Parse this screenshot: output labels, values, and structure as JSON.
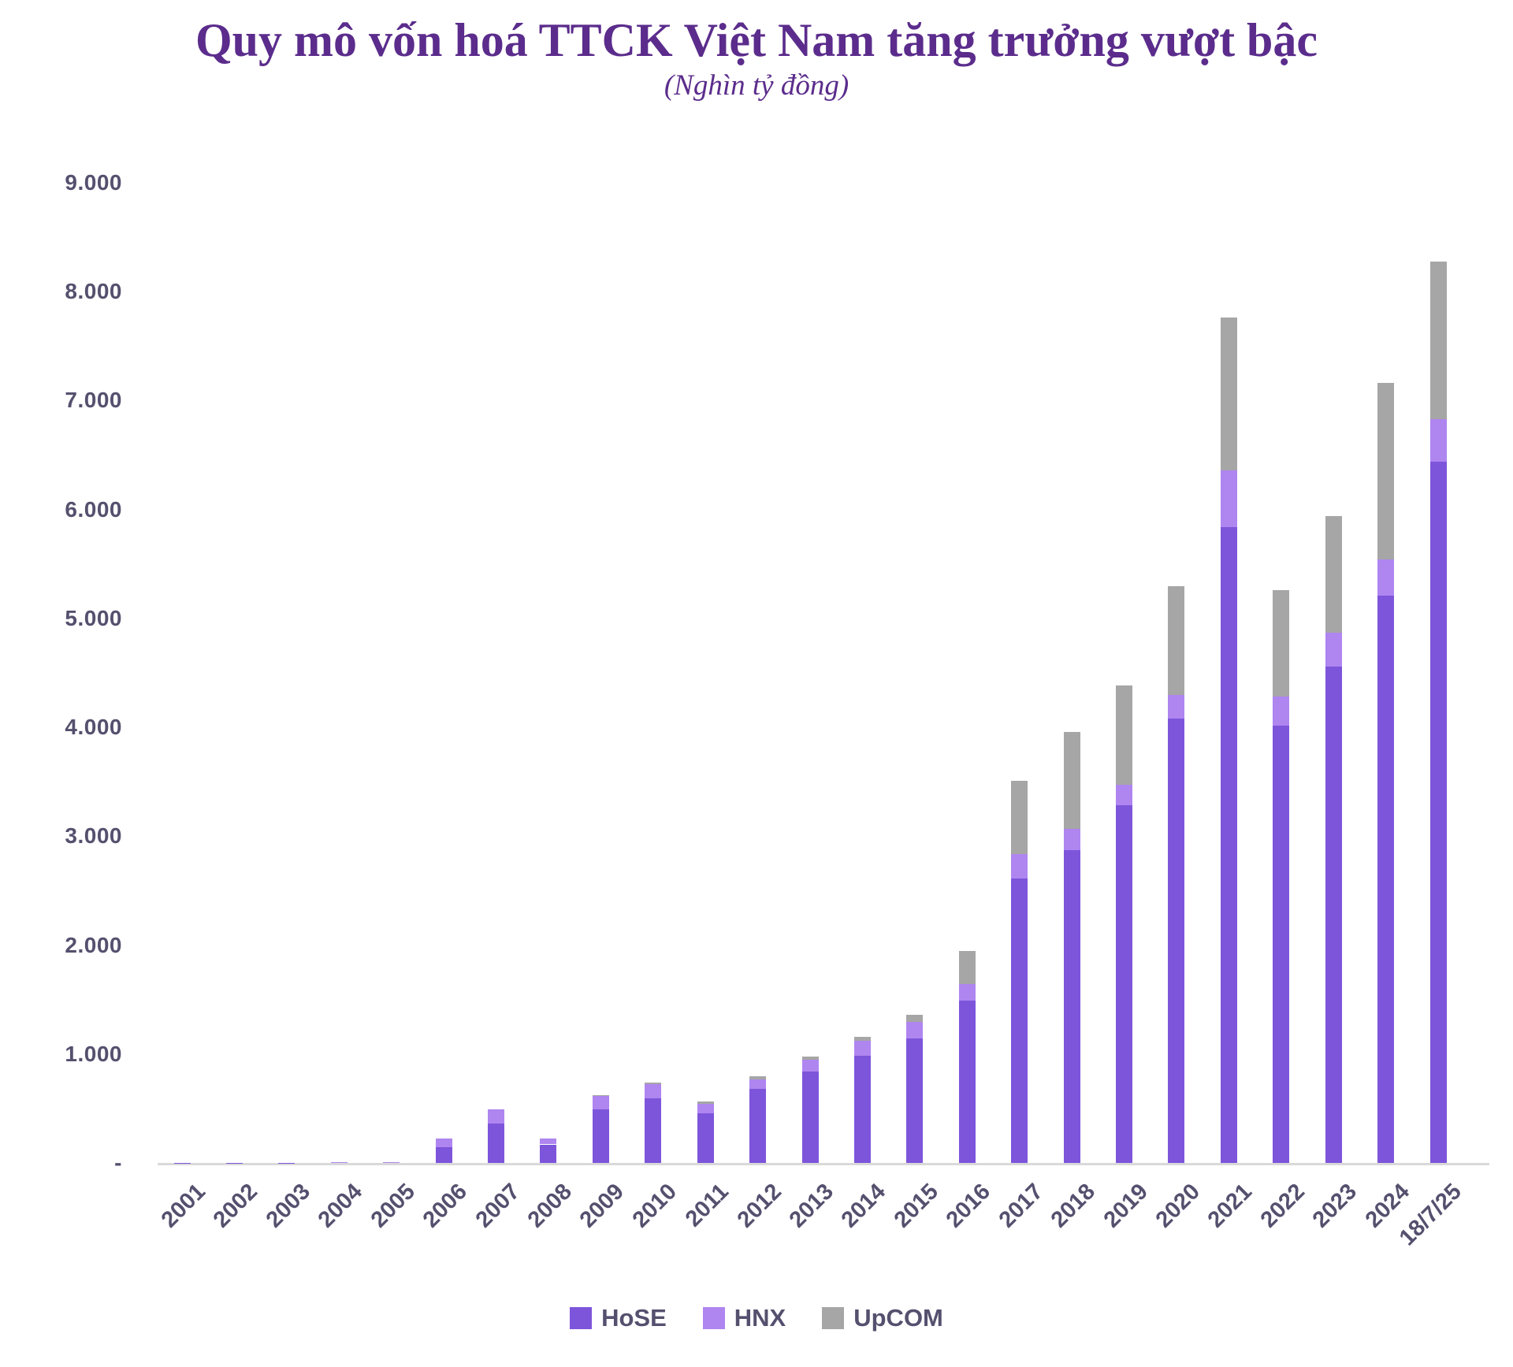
{
  "header": {
    "title": "Quy mô vốn hoá TTCK Việt Nam tăng trưởng vượt bậc",
    "subtitle": "(Nghìn tỷ đồng)"
  },
  "colors": {
    "title": "#5B2C8C",
    "axis_label": "#55506E",
    "axis_line": "#D9D9D9",
    "hose": "#7D55DB",
    "hnx": "#AF85F0",
    "upcom": "#A6A6A6"
  },
  "y_axis": {
    "ticks": [
      {
        "label": "9.000",
        "value": 9000
      },
      {
        "label": "8.000",
        "value": 8000
      },
      {
        "label": "7.000",
        "value": 7000
      },
      {
        "label": "6.000",
        "value": 6000
      },
      {
        "label": "5.000",
        "value": 5000
      },
      {
        "label": "4.000",
        "value": 4000
      },
      {
        "label": "3.000",
        "value": 3000
      },
      {
        "label": "2.000",
        "value": 2000
      },
      {
        "label": "1.000",
        "value": 1000
      },
      {
        "label": "-",
        "value": 0
      }
    ]
  },
  "chart_data": {
    "type": "bar",
    "stacked": true,
    "title": "Quy mô vốn hoá TTCK Việt Nam tăng trưởng vượt bậc",
    "subtitle": "(Nghìn tỷ đồng)",
    "unit": "nghìn tỷ đồng",
    "xlabel": "",
    "ylabel": "",
    "ylim": [
      0,
      9000
    ],
    "grid": false,
    "legend_position": "bottom",
    "categories": [
      "2001",
      "2002",
      "2003",
      "2004",
      "2005",
      "2006",
      "2007",
      "2008",
      "2009",
      "2010",
      "2011",
      "2012",
      "2013",
      "2014",
      "2015",
      "2016",
      "2017",
      "2018",
      "2019",
      "2020",
      "2021",
      "2022",
      "2023",
      "2024",
      "18/7/25"
    ],
    "series": [
      {
        "name": "HoSE",
        "color_key": "hose",
        "values": [
          1.6,
          2.5,
          2.4,
          4.2,
          7.4,
          148,
          364,
          170,
          495,
          591,
          454,
          678,
          842,
          986,
          1146,
          1491,
          2614,
          2875,
          3281,
          4081,
          5837,
          4018,
          4556,
          5211,
          6440
        ]
      },
      {
        "name": "HNX",
        "color_key": "hnx",
        "values": [
          0.2,
          0.3,
          0.4,
          1.9,
          2.0,
          73,
          130,
          55,
          122,
          131,
          85,
          86,
          107,
          136,
          151,
          151,
          223,
          192,
          193,
          213,
          523,
          263,
          312,
          330,
          390
        ]
      },
      {
        "name": "UpCOM",
        "color_key": "upcom",
        "values": [
          0,
          0,
          0,
          0,
          0,
          0,
          0,
          0,
          4,
          14,
          24,
          29,
          29,
          33,
          61,
          306,
          674,
          893,
          912,
          1000,
          1404,
          980,
          1069,
          1620,
          1450
        ]
      }
    ]
  },
  "legend": {
    "items": [
      {
        "label": "HoSE"
      },
      {
        "label": "HNX"
      },
      {
        "label": "UpCOM"
      }
    ]
  }
}
